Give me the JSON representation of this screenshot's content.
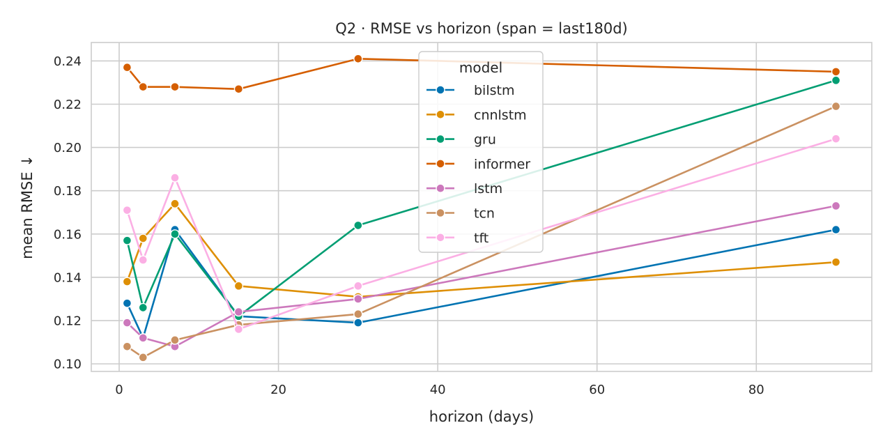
{
  "chart_data": {
    "type": "line",
    "title": "Q2 · RMSE vs horizon  (span = last180d)",
    "xlabel": "horizon (days)",
    "ylabel": "mean RMSE ↓",
    "x": [
      1,
      3,
      7,
      15,
      30,
      90
    ],
    "xlim": [
      -3.5,
      94.5
    ],
    "ylim": [
      0.0965,
      0.2485
    ],
    "xticks": [
      0,
      20,
      40,
      60,
      80
    ],
    "yticks": [
      0.1,
      0.12,
      0.14,
      0.16,
      0.18,
      0.2,
      0.22,
      0.24
    ],
    "xtick_labels": [
      "0",
      "20",
      "40",
      "60",
      "80"
    ],
    "ytick_labels": [
      "0.10",
      "0.12",
      "0.14",
      "0.16",
      "0.18",
      "0.20",
      "0.22",
      "0.24"
    ],
    "grid": true,
    "legend": {
      "title": "model",
      "placement": "top-center"
    },
    "series": [
      {
        "name": "bilstm",
        "color": "#0173b2",
        "values": [
          0.128,
          0.112,
          0.162,
          0.122,
          0.119,
          0.162
        ]
      },
      {
        "name": "cnnlstm",
        "color": "#de8f05",
        "values": [
          0.138,
          0.158,
          0.174,
          0.136,
          0.131,
          0.147
        ]
      },
      {
        "name": "gru",
        "color": "#029e73",
        "values": [
          0.157,
          0.126,
          0.16,
          0.122,
          0.164,
          0.231
        ]
      },
      {
        "name": "informer",
        "color": "#d55e00",
        "values": [
          0.237,
          0.228,
          0.228,
          0.227,
          0.241,
          0.235
        ]
      },
      {
        "name": "lstm",
        "color": "#cc78bc",
        "values": [
          0.119,
          0.112,
          0.108,
          0.124,
          0.13,
          0.173
        ]
      },
      {
        "name": "tcn",
        "color": "#ca9161",
        "values": [
          0.108,
          0.103,
          0.111,
          0.118,
          0.123,
          0.219
        ]
      },
      {
        "name": "tft",
        "color": "#fbafe4",
        "values": [
          0.171,
          0.148,
          0.186,
          0.116,
          0.136,
          0.204
        ]
      }
    ]
  }
}
